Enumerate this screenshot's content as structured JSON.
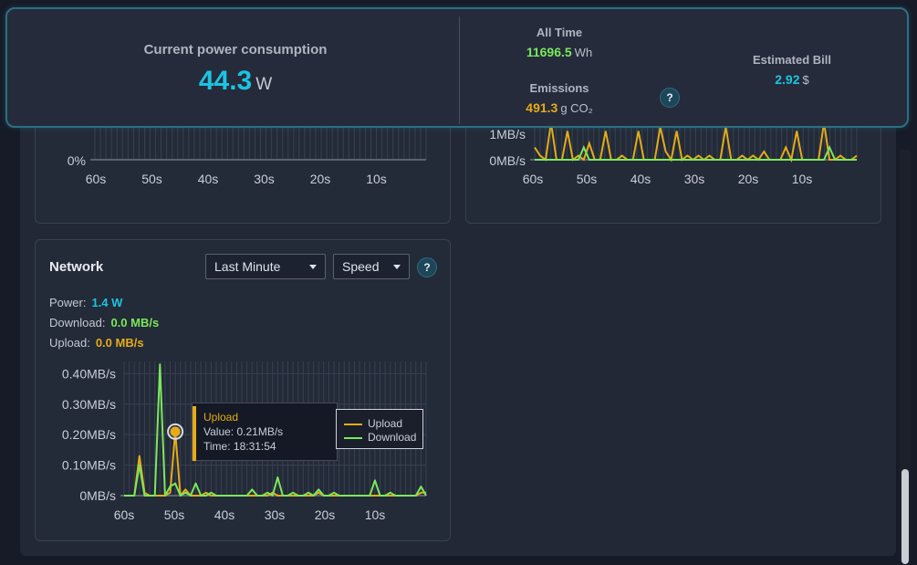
{
  "header": {
    "power_label": "Current power consumption",
    "power_value": "44.3",
    "power_unit": "W",
    "all_time_label": "All Time",
    "all_time_value": "11696.5",
    "all_time_unit": "Wh",
    "emissions_label": "Emissions",
    "emissions_value": "491.3",
    "emissions_unit": "g CO₂",
    "help_label": "?",
    "bill_label": "Estimated Bill",
    "bill_value": "2.92",
    "bill_unit": "$"
  },
  "top_left_chart": {
    "y_ticks": [
      "0%"
    ],
    "x_ticks": [
      "60s",
      "50s",
      "40s",
      "30s",
      "20s",
      "10s"
    ]
  },
  "top_right_chart": {
    "y_ticks": [
      "1MB/s",
      "0MB/s"
    ],
    "x_ticks": [
      "60s",
      "50s",
      "40s",
      "30s",
      "20s",
      "10s"
    ],
    "series_a_yellow": [
      3,
      1,
      0,
      9,
      0,
      0,
      7,
      0,
      1,
      0,
      4,
      0,
      0,
      7,
      0,
      0,
      1,
      0,
      0,
      7,
      0,
      0,
      0,
      8,
      2,
      0,
      7,
      0,
      1,
      0,
      1,
      0,
      1,
      0,
      0,
      8,
      0,
      0,
      1,
      0,
      1,
      0,
      2,
      0,
      0,
      0,
      3,
      0,
      7,
      0,
      0,
      0,
      0,
      9,
      0,
      0,
      1,
      0,
      0,
      1
    ],
    "series_b_green": [
      0,
      0,
      0,
      0,
      0,
      0,
      0,
      0,
      0,
      3,
      0,
      0,
      0,
      0,
      0,
      0,
      0,
      0,
      0,
      0,
      0,
      0,
      0,
      0,
      0,
      0,
      0,
      0,
      0,
      0,
      0,
      0,
      0,
      0,
      0,
      0,
      0,
      0,
      0,
      0,
      0,
      0,
      0,
      0,
      0,
      0,
      0,
      0,
      0,
      0,
      0,
      0,
      0,
      0,
      3,
      0,
      0,
      0,
      0,
      0
    ]
  },
  "network": {
    "title": "Network",
    "range_select": "Last Minute",
    "mode_select": "Speed",
    "help_label": "?",
    "power_label": "Power:",
    "power_value": "1.4 W",
    "download_label": "Download:",
    "download_value": "0.0 MB/s",
    "upload_label": "Upload:",
    "upload_value": "0.0 MB/s",
    "tooltip": {
      "series": "Upload",
      "value_line": "Value: 0.21MB/s",
      "time_line": "Time: 18:31:54"
    },
    "legend": [
      "Upload",
      "Download"
    ]
  },
  "colors": {
    "accent": "#1cc3e0",
    "green": "#7be85c",
    "yellow": "#e5ac18"
  },
  "chart_data": {
    "type": "line",
    "x": [
      60,
      59,
      58,
      57,
      56,
      55,
      54,
      53,
      52,
      51,
      50,
      49,
      48,
      47,
      46,
      45,
      44,
      43,
      42,
      41,
      40,
      39,
      38,
      37,
      36,
      35,
      34,
      33,
      32,
      31,
      30,
      29,
      28,
      27,
      26,
      25,
      24,
      23,
      22,
      21,
      20,
      19,
      18,
      17,
      16,
      15,
      14,
      13,
      12,
      11,
      10,
      9,
      8,
      7,
      6,
      5,
      4,
      3,
      2,
      1
    ],
    "x_ticks": [
      "60s",
      "50s",
      "40s",
      "30s",
      "20s",
      "10s"
    ],
    "y_ticks": [
      "0.40MB/s",
      "0.30MB/s",
      "0.20MB/s",
      "0.10MB/s",
      "0MB/s"
    ],
    "ylim": [
      0,
      0.44
    ],
    "xlim": [
      60,
      1
    ],
    "series": [
      {
        "name": "Upload",
        "values": [
          0,
          0,
          0,
          0.13,
          0.01,
          0,
          0,
          0,
          0,
          0.01,
          0.21,
          0,
          0.02,
          0,
          0,
          0,
          0.01,
          0,
          0,
          0,
          0,
          0,
          0,
          0,
          0,
          0,
          0,
          0,
          0,
          0.01,
          0,
          0,
          0,
          0,
          0,
          0,
          0,
          0,
          0.01,
          0,
          0,
          0,
          0,
          0,
          0,
          0,
          0,
          0,
          0,
          0,
          0,
          0,
          0,
          0,
          0,
          0,
          0,
          0,
          0.01,
          0.01
        ]
      },
      {
        "name": "Download",
        "values": [
          0,
          0,
          0,
          0.1,
          0,
          0,
          0,
          0.43,
          0,
          0.03,
          0.04,
          0,
          0.01,
          0,
          0.04,
          0,
          0,
          0.01,
          0,
          0,
          0,
          0,
          0,
          0,
          0,
          0.02,
          0,
          0,
          0.01,
          0,
          0.06,
          0,
          0,
          0.01,
          0,
          0,
          0.01,
          0,
          0.02,
          0,
          0,
          0.01,
          0,
          0,
          0,
          0,
          0,
          0,
          0,
          0.05,
          0,
          0,
          0.01,
          0,
          0,
          0,
          0,
          0,
          0.03,
          0
        ]
      }
    ]
  }
}
